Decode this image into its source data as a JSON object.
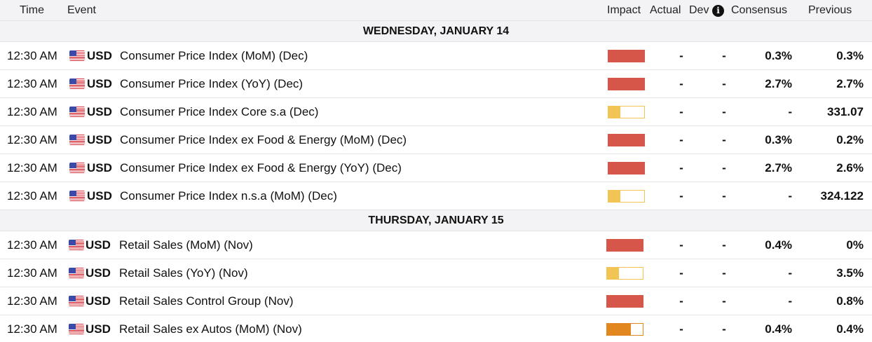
{
  "header": {
    "time": "Time",
    "event": "Event",
    "impact": "Impact",
    "actual": "Actual",
    "dev": "Dev",
    "info_icon": "i",
    "consensus": "Consensus",
    "previous": "Previous"
  },
  "colors": {
    "high": "#d6574a",
    "medium": "#e2871f",
    "low": "#f2c453",
    "day_bg": "#f3f3f5"
  },
  "days": [
    {
      "label": "WEDNESDAY, JANUARY 14",
      "events": [
        {
          "time": "12:30 AM",
          "currency": "USD",
          "event": "Consumer Price Index (MoM) (Dec)",
          "impact": "high",
          "actual": "-",
          "dev": "-",
          "consensus": "0.3%",
          "previous": "0.3%"
        },
        {
          "time": "12:30 AM",
          "currency": "USD",
          "event": "Consumer Price Index (YoY) (Dec)",
          "impact": "high",
          "actual": "-",
          "dev": "-",
          "consensus": "2.7%",
          "previous": "2.7%"
        },
        {
          "time": "12:30 AM",
          "currency": "USD",
          "event": "Consumer Price Index Core s.a (Dec)",
          "impact": "low",
          "actual": "-",
          "dev": "-",
          "consensus": "-",
          "previous": "331.07"
        },
        {
          "time": "12:30 AM",
          "currency": "USD",
          "event": "Consumer Price Index ex Food & Energy (MoM) (Dec)",
          "impact": "high",
          "actual": "-",
          "dev": "-",
          "consensus": "0.3%",
          "previous": "0.2%"
        },
        {
          "time": "12:30 AM",
          "currency": "USD",
          "event": "Consumer Price Index ex Food & Energy (YoY) (Dec)",
          "impact": "high",
          "actual": "-",
          "dev": "-",
          "consensus": "2.7%",
          "previous": "2.6%"
        },
        {
          "time": "12:30 AM",
          "currency": "USD",
          "event": "Consumer Price Index n.s.a (MoM) (Dec)",
          "impact": "low",
          "actual": "-",
          "dev": "-",
          "consensus": "-",
          "previous": "324.122"
        }
      ]
    },
    {
      "label": "THURSDAY, JANUARY 15",
      "events": [
        {
          "time": "12:30 AM",
          "currency": "USD",
          "event": "Retail Sales (MoM) (Nov)",
          "impact": "high",
          "actual": "-",
          "dev": "-",
          "consensus": "0.4%",
          "previous": "0%"
        },
        {
          "time": "12:30 AM",
          "currency": "USD",
          "event": "Retail Sales (YoY) (Nov)",
          "impact": "low",
          "actual": "-",
          "dev": "-",
          "consensus": "-",
          "previous": "3.5%"
        },
        {
          "time": "12:30 AM",
          "currency": "USD",
          "event": "Retail Sales Control Group (Nov)",
          "impact": "high",
          "actual": "-",
          "dev": "-",
          "consensus": "-",
          "previous": "0.8%"
        },
        {
          "time": "12:30 AM",
          "currency": "USD",
          "event": "Retail Sales ex Autos (MoM) (Nov)",
          "impact": "medium",
          "actual": "-",
          "dev": "-",
          "consensus": "0.4%",
          "previous": "0.4%"
        }
      ]
    }
  ]
}
